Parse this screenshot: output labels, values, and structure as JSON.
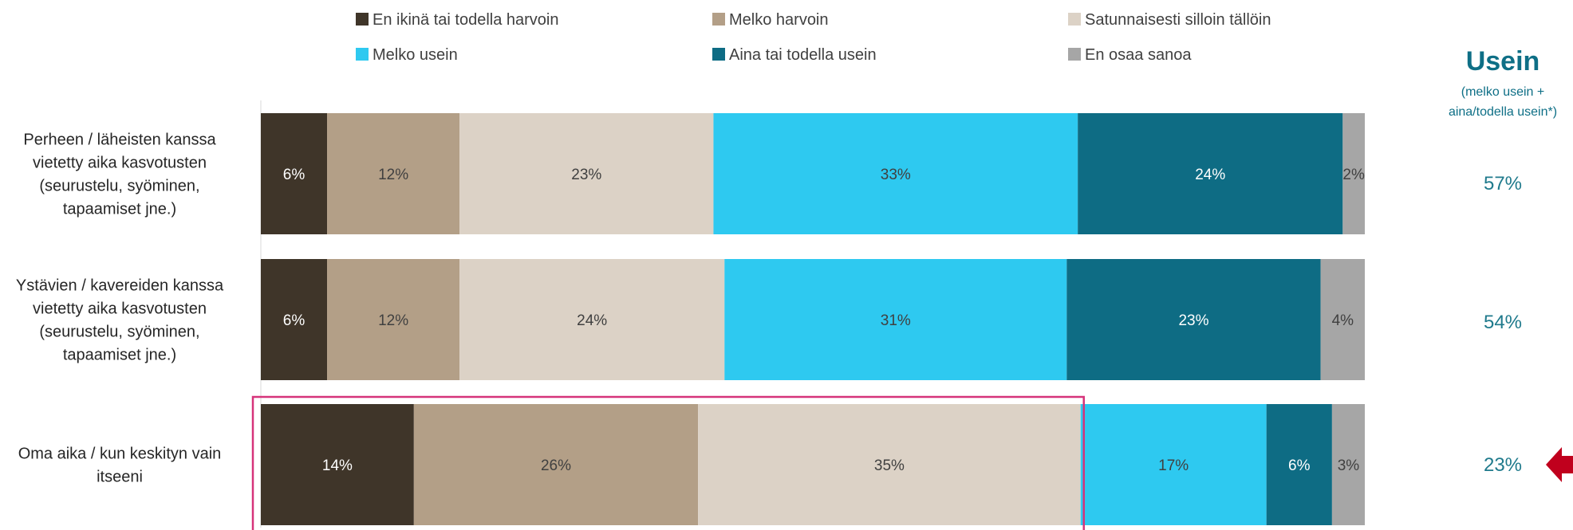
{
  "chart_data": {
    "type": "bar",
    "orientation": "horizontal",
    "stacked": true,
    "percent_scale": true,
    "xlim": [
      0,
      100
    ],
    "categories": [
      [
        "Perheen / läheisten kanssa",
        "vietetty aika kasvotusten",
        "(seurustelu, syöminen,",
        "tapaamiset jne.)"
      ],
      [
        "Ystävien / kavereiden kanssa",
        "vietetty aika kasvotusten",
        "(seurustelu, syöminen,",
        "tapaamiset jne.)"
      ],
      [
        "Oma aika /  kun keskityn vain",
        "itseeni"
      ]
    ],
    "series": [
      {
        "name": "En ikinä tai todella harvoin",
        "color": "#3f3529",
        "text_color": "#ffffff",
        "values": [
          6,
          6,
          14
        ]
      },
      {
        "name": "Melko harvoin",
        "color": "#b39f87",
        "text_color": "#404040",
        "values": [
          12,
          12,
          26
        ]
      },
      {
        "name": "Satunnaisesti silloin tällöin",
        "color": "#dcd2c6",
        "text_color": "#404040",
        "values": [
          23,
          24,
          35
        ]
      },
      {
        "name": "Melko usein",
        "color": "#2ec9f0",
        "text_color": "#404040",
        "values": [
          33,
          31,
          17
        ]
      },
      {
        "name": "Aina tai todella usein",
        "color": "#0e6c84",
        "text_color": "#ffffff",
        "values": [
          24,
          23,
          6
        ]
      },
      {
        "name": "En osaa sanoa",
        "color": "#a6a6a6",
        "text_color": "#404040",
        "values": [
          2,
          4,
          3
        ]
      }
    ],
    "data_labels": [
      [
        "6%",
        "12%",
        "23%",
        "33%",
        "24%",
        "2%"
      ],
      [
        "6%",
        "12%",
        "24%",
        "31%",
        "23%",
        "4%"
      ],
      [
        "14%",
        "26%",
        "35%",
        "17%",
        "6%",
        "3%"
      ]
    ],
    "legend_position": "top",
    "side_panel": {
      "title": "Usein",
      "subtitle": [
        "(melko usein +",
        "aina/todella usein*)"
      ],
      "values": [
        "57%",
        "54%",
        "23%"
      ],
      "color": "#0e6f86"
    },
    "highlight": {
      "row": 2,
      "series_covered": [
        "En ikinä tai todella harvoin",
        "Melko harvoin",
        "Satunnaisesti silloin tällöin"
      ],
      "color": "#d6337a"
    },
    "arrow": {
      "row": 2,
      "color": "#c0001d"
    }
  }
}
